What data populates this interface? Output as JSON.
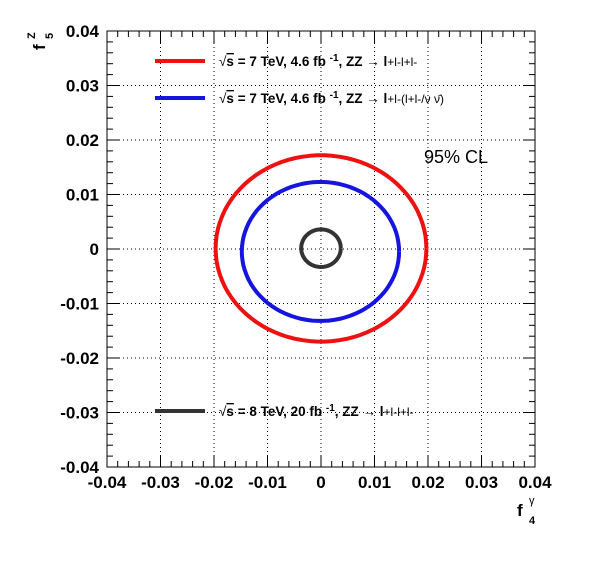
{
  "chart_data": {
    "type": "line",
    "title": "",
    "xlabel": "f4γ",
    "ylabel": "f5Z",
    "xlim": [
      -0.04,
      0.04
    ],
    "ylim": [
      -0.04,
      0.04
    ],
    "grid": true,
    "x_tick_labels": [
      "-0.04",
      "-0.03",
      "-0.02",
      "-0.01",
      "0",
      "0.01",
      "0.02",
      "0.03",
      "0.04"
    ],
    "y_tick_labels": [
      "0.04",
      "0.03",
      "0.02",
      "0.01",
      "0",
      "-0.01",
      "-0.02",
      "-0.03",
      "-0.04"
    ],
    "annotation": "95% CL",
    "series": [
      {
        "name": "√s = 7 TeV, 4.6 fb -1, ZZ → l+l-l+l-",
        "color": "#ee1111",
        "center": [
          0.0,
          0.0
        ],
        "x_range": [
          -0.0197,
          0.0197
        ],
        "y_range": [
          -0.017,
          0.0172
        ]
      },
      {
        "name": "√s = 7 TeV, 4.6 fb -1, ZZ → l+l-(l+l-/ν ν̄)",
        "color": "#1515dd",
        "center": [
          0.0,
          0.0
        ],
        "x_range": [
          -0.0148,
          0.0146
        ],
        "y_range": [
          -0.0132,
          0.0123
        ]
      },
      {
        "name": "√s = 8 TeV, 20 fb -1, ZZ → l+l-l+l-",
        "color": "#333333",
        "center": [
          0.0,
          0.0
        ],
        "x_range": [
          -0.0037,
          0.0037
        ],
        "y_range": [
          -0.0033,
          0.0036
        ]
      }
    ],
    "legend": {
      "entries": [
        {
          "series": 0,
          "sqrt": "√",
          "s_text": "s",
          "rest": " = 7 TeV, 4.6 fb ",
          "exp": "-1",
          "process": ", ZZ → l",
          "final": "+l-l+l-"
        },
        {
          "series": 1,
          "sqrt": "√",
          "s_text": "s",
          "rest": " = 7 TeV, 4.6 fb ",
          "exp": "-1",
          "process": ", ZZ → l",
          "final": "+l-(l+l-/ν ν̄)"
        },
        {
          "series": 2,
          "sqrt": "√",
          "s_text": "s",
          "rest": " = 8 TeV, 20 fb ",
          "exp": "-1",
          "process": ", ZZ → l",
          "final": "+l-l+l-"
        }
      ]
    }
  }
}
